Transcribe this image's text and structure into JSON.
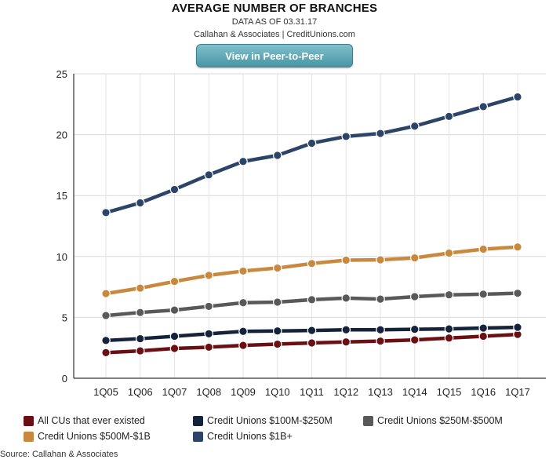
{
  "header": {
    "title": "AVERAGE NUMBER OF BRANCHES",
    "subtitle": "DATA AS OF 03.31.17",
    "attribution": "Callahan & Associates | CreditUnions.com",
    "button_label": "View in Peer-to-Peer"
  },
  "footer": {
    "source": "Source: Callahan & Associates"
  },
  "chart_data": {
    "type": "line",
    "title": "AVERAGE NUMBER OF BRANCHES",
    "xlabel": "",
    "ylabel": "",
    "ylim": [
      0,
      25
    ],
    "yticks": [
      0,
      5,
      10,
      15,
      20,
      25
    ],
    "grid": true,
    "legend_position": "bottom",
    "categories": [
      "1Q05",
      "1Q06",
      "1Q07",
      "1Q08",
      "1Q09",
      "1Q10",
      "1Q11",
      "1Q12",
      "1Q13",
      "1Q14",
      "1Q15",
      "1Q16",
      "1Q17"
    ],
    "series": [
      {
        "name": "All CUs that ever existed",
        "color": "#6b0f12",
        "values": [
          2.1,
          2.25,
          2.45,
          2.55,
          2.7,
          2.8,
          2.9,
          2.98,
          3.05,
          3.15,
          3.3,
          3.45,
          3.6
        ]
      },
      {
        "name": "Credit Unions $100M-$250M",
        "color": "#14233a",
        "values": [
          3.1,
          3.25,
          3.45,
          3.65,
          3.85,
          3.88,
          3.92,
          3.98,
          3.98,
          4.02,
          4.05,
          4.12,
          4.18
        ]
      },
      {
        "name": "Credit Unions $250M-$500M",
        "color": "#595959",
        "values": [
          5.15,
          5.4,
          5.6,
          5.9,
          6.2,
          6.25,
          6.45,
          6.58,
          6.5,
          6.7,
          6.85,
          6.9,
          6.98
        ]
      },
      {
        "name": "Credit Unions $500M-$1B",
        "color": "#c8893f",
        "values": [
          6.95,
          7.4,
          7.95,
          8.45,
          8.8,
          9.05,
          9.42,
          9.7,
          9.72,
          9.88,
          10.28,
          10.6,
          10.78
        ]
      },
      {
        "name": "Credit Unions $1B+",
        "color": "#2c4467",
        "values": [
          13.6,
          14.4,
          15.5,
          16.7,
          17.8,
          18.3,
          19.3,
          19.85,
          20.1,
          20.7,
          21.5,
          22.3,
          23.1
        ]
      }
    ]
  }
}
